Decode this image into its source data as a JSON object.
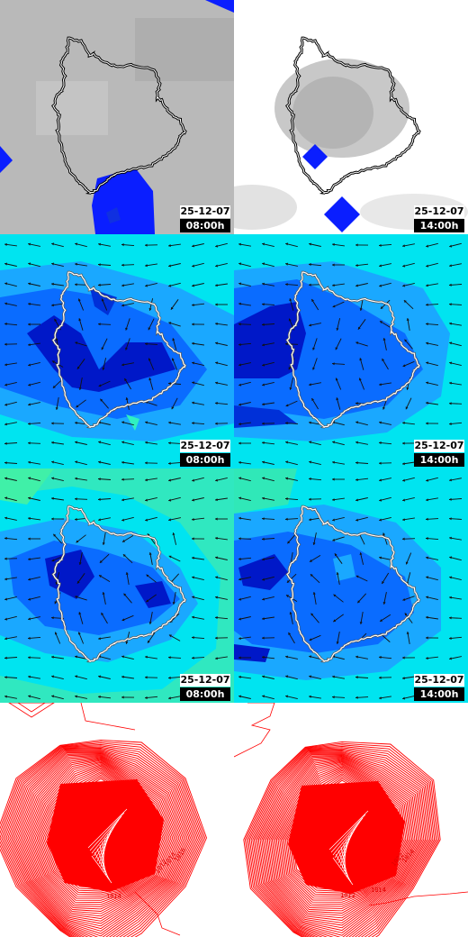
{
  "colors": {
    "cloud_background": "#b8b8b8",
    "cloud_clear": "#ffffff",
    "precip_blue": "#0a1eff",
    "field_light": "#00e8f0",
    "field_mid": "#1aa8ff",
    "field_deep": "#0a5cff",
    "field_core": "#0018c8",
    "field_green": "#30f0b0",
    "isobar_red": "#ff0000"
  },
  "panels": [
    {
      "row": "cloud-cover",
      "date": "25-12-07",
      "time": "08:00h"
    },
    {
      "row": "cloud-cover",
      "date": "25-12-07",
      "time": "14:00h"
    },
    {
      "row": "wind-field-a",
      "date": "25-12-07",
      "time": "08:00h"
    },
    {
      "row": "wind-field-a",
      "date": "25-12-07",
      "time": "14:00h"
    },
    {
      "row": "wind-field-b",
      "date": "25-12-07",
      "time": "08:00h"
    },
    {
      "row": "wind-field-b",
      "date": "25-12-07",
      "time": "14:00h"
    },
    {
      "row": "isobars",
      "isobar_labels": [
        "1012",
        "1014",
        "1016",
        "1014"
      ]
    },
    {
      "row": "isobars",
      "isobar_labels": [
        "1012",
        "1014",
        "1014",
        "1012"
      ]
    }
  ]
}
